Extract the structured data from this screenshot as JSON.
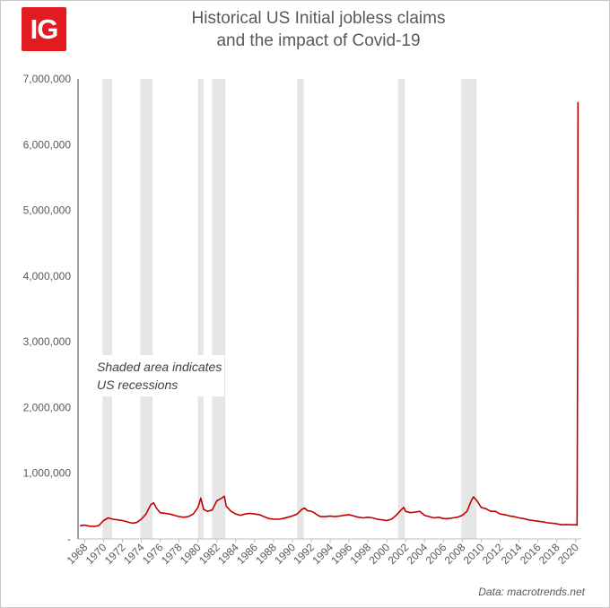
{
  "brand": {
    "logo_text": "IG",
    "color": "#e11b22"
  },
  "source_note": "Data: macrotrends.net",
  "chart_data": {
    "type": "line",
    "title_lines": [
      "Historical US Initial jobless claims",
      "and the impact of Covid-19"
    ],
    "xlabel": "",
    "ylabel": "",
    "xlim": [
      1967.3,
      2020.6
    ],
    "ylim": [
      0,
      7000000
    ],
    "x_ticks": [
      1968,
      1970,
      1972,
      1974,
      1976,
      1978,
      1980,
      1982,
      1984,
      1986,
      1988,
      1990,
      1992,
      1994,
      1996,
      1998,
      2000,
      2002,
      2004,
      2006,
      2008,
      2010,
      2012,
      2014,
      2016,
      2018,
      2020
    ],
    "y_tick_labels": [
      {
        "value": 0,
        "label": "-"
      },
      {
        "value": 1000000,
        "label": "1,000,000"
      },
      {
        "value": 2000000,
        "label": "2,000,000"
      },
      {
        "value": 3000000,
        "label": "3,000,000"
      },
      {
        "value": 4000000,
        "label": "4,000,000"
      },
      {
        "value": 5000000,
        "label": "5,000,000"
      },
      {
        "value": 6000000,
        "label": "6,000,000"
      },
      {
        "value": 7000000,
        "label": "7,000,000"
      }
    ],
    "grid": false,
    "line_color": "#c00000",
    "recession_color": "#e6e6e6",
    "recessions": [
      [
        1969.9,
        1970.9
      ],
      [
        1973.9,
        1975.2
      ],
      [
        1980.0,
        1980.6
      ],
      [
        1981.5,
        1982.9
      ],
      [
        1990.5,
        1991.2
      ],
      [
        2001.2,
        2001.9
      ],
      [
        2007.9,
        2009.5
      ]
    ],
    "annotation": [
      "Shaded area indicates",
      "US recessions"
    ],
    "x": [
      1967.5,
      1968.0,
      1968.5,
      1969.0,
      1969.5,
      1970.0,
      1970.5,
      1971.0,
      1971.5,
      1972.0,
      1972.5,
      1973.0,
      1973.5,
      1974.0,
      1974.5,
      1975.0,
      1975.3,
      1975.6,
      1976.0,
      1976.5,
      1977.0,
      1977.5,
      1978.0,
      1978.5,
      1979.0,
      1979.5,
      1980.0,
      1980.3,
      1980.6,
      1981.0,
      1981.5,
      1982.0,
      1982.5,
      1982.8,
      1983.0,
      1983.5,
      1984.0,
      1984.5,
      1985.0,
      1985.5,
      1986.0,
      1986.5,
      1987.0,
      1987.5,
      1988.0,
      1988.5,
      1989.0,
      1989.5,
      1990.0,
      1990.5,
      1991.0,
      1991.3,
      1991.6,
      1992.0,
      1992.3,
      1992.7,
      1993.0,
      1993.5,
      1994.0,
      1994.5,
      1995.0,
      1995.5,
      1996.0,
      1996.5,
      1997.0,
      1997.5,
      1998.0,
      1998.5,
      1999.0,
      1999.5,
      2000.0,
      2000.5,
      2001.0,
      2001.5,
      2001.8,
      2002.0,
      2002.5,
      2003.0,
      2003.5,
      2004.0,
      2004.5,
      2005.0,
      2005.5,
      2006.0,
      2006.5,
      2007.0,
      2007.5,
      2008.0,
      2008.5,
      2009.0,
      2009.2,
      2009.6,
      2010.0,
      2010.5,
      2011.0,
      2011.5,
      2012.0,
      2012.5,
      2013.0,
      2013.5,
      2014.0,
      2014.5,
      2015.0,
      2015.5,
      2016.0,
      2016.5,
      2017.0,
      2017.5,
      2018.0,
      2018.5,
      2019.0,
      2019.5,
      2020.0,
      2020.15,
      2020.22,
      2020.25
    ],
    "series": [
      {
        "name": "",
        "values": [
          200000,
          210000,
          195000,
          190000,
          205000,
          280000,
          320000,
          300000,
          290000,
          280000,
          260000,
          240000,
          250000,
          300000,
          380000,
          520000,
          550000,
          470000,
          400000,
          390000,
          380000,
          360000,
          340000,
          330000,
          340000,
          380000,
          480000,
          620000,
          450000,
          420000,
          440000,
          580000,
          620000,
          650000,
          500000,
          420000,
          380000,
          360000,
          380000,
          390000,
          380000,
          370000,
          340000,
          310000,
          300000,
          300000,
          310000,
          330000,
          350000,
          380000,
          450000,
          470000,
          430000,
          420000,
          400000,
          360000,
          340000,
          340000,
          350000,
          340000,
          350000,
          360000,
          370000,
          350000,
          330000,
          320000,
          330000,
          320000,
          300000,
          290000,
          280000,
          300000,
          360000,
          440000,
          480000,
          420000,
          400000,
          410000,
          420000,
          360000,
          340000,
          320000,
          330000,
          310000,
          310000,
          320000,
          330000,
          360000,
          420000,
          600000,
          640000,
          570000,
          480000,
          460000,
          420000,
          420000,
          380000,
          370000,
          350000,
          340000,
          320000,
          310000,
          290000,
          280000,
          270000,
          260000,
          245000,
          240000,
          230000,
          215000,
          220000,
          215000,
          215000,
          210000,
          3300000,
          6650000
        ]
      }
    ]
  }
}
